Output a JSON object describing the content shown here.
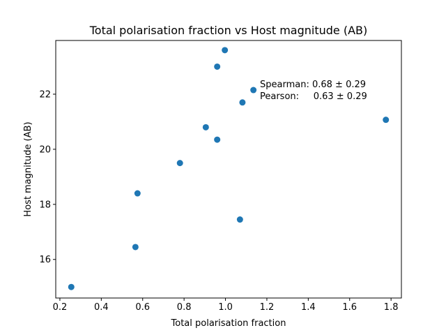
{
  "chart_data": {
    "type": "scatter",
    "title": "Total polarisation fraction vs Host magnitude (AB)",
    "xlabel": "Total polarisation fraction",
    "ylabel": "Host magnitude (AB)",
    "xlim": [
      0.18,
      1.85
    ],
    "ylim": [
      14.6,
      23.95
    ],
    "xticks": [
      0.2,
      0.4,
      0.6,
      0.8,
      1.0,
      1.2,
      1.4,
      1.6,
      1.8
    ],
    "xtick_labels": [
      "0.2",
      "0.4",
      "0.6",
      "0.8",
      "1.0",
      "1.2",
      "1.4",
      "1.6",
      "1.8"
    ],
    "yticks": [
      16,
      18,
      20,
      22
    ],
    "ytick_labels": [
      "16",
      "18",
      "20",
      "22"
    ],
    "grid": false,
    "marker_color": "#1f77b4",
    "points": [
      {
        "x": 0.255,
        "y": 15.0
      },
      {
        "x": 0.565,
        "y": 16.45
      },
      {
        "x": 0.575,
        "y": 18.4
      },
      {
        "x": 0.78,
        "y": 19.5
      },
      {
        "x": 0.905,
        "y": 20.8
      },
      {
        "x": 0.96,
        "y": 20.35
      },
      {
        "x": 0.96,
        "y": 23.0
      },
      {
        "x": 0.997,
        "y": 23.6
      },
      {
        "x": 1.07,
        "y": 17.45
      },
      {
        "x": 1.082,
        "y": 21.7
      },
      {
        "x": 1.135,
        "y": 22.15
      },
      {
        "x": 1.775,
        "y": 21.07
      }
    ],
    "annotations": [
      "Spearman: 0.68 ± 0.29",
      "Pearson:     0.63 ± 0.29"
    ]
  }
}
